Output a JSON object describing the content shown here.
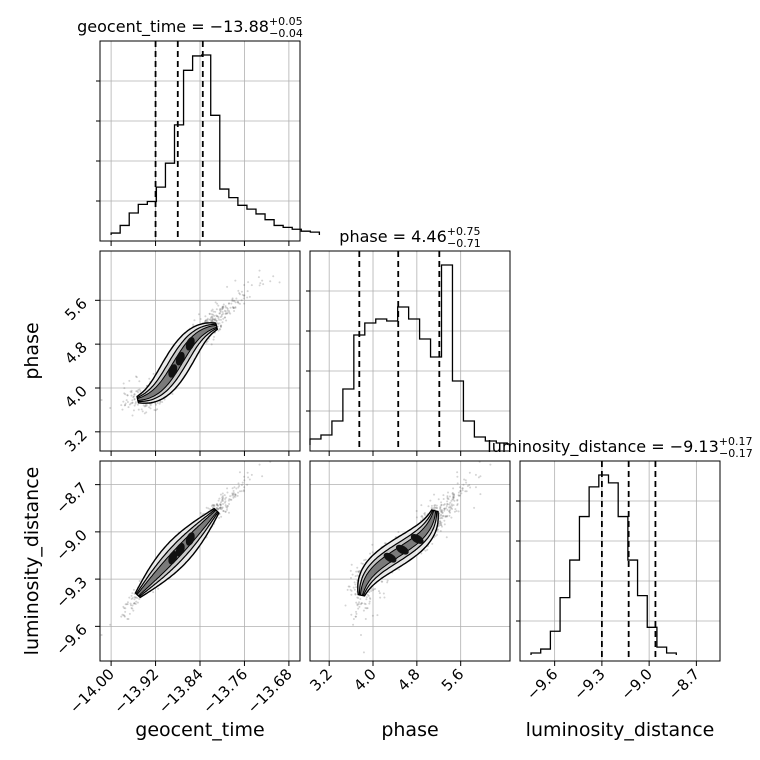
{
  "chart_data": {
    "type": "corner",
    "parameters": [
      "geocent_time",
      "phase",
      "luminosity_distance"
    ],
    "titles": [
      {
        "name": "geocent_time",
        "median": "−13.88",
        "plus": "+0.05",
        "minus": "−0.04"
      },
      {
        "name": "phase",
        "median": "4.46",
        "plus": "+0.75",
        "minus": "−0.71"
      },
      {
        "name": "luminosity_distance",
        "median": "−9.13",
        "plus": "+0.17",
        "minus": "−0.17"
      }
    ],
    "axis_labels": [
      "geocent_time",
      "phase",
      "luminosity_distance"
    ],
    "ranges": [
      [
        -14.02,
        -13.66
      ],
      [
        2.85,
        6.5
      ],
      [
        -9.82,
        -8.55
      ]
    ],
    "ticks": {
      "geocent_time": [
        -14.0,
        -13.92,
        -13.84,
        -13.76,
        -13.68
      ],
      "phase": [
        3.2,
        4.0,
        4.8,
        5.6
      ],
      "luminosity_distance": [
        -9.6,
        -9.3,
        -9.0,
        -8.7
      ]
    },
    "tick_labels": {
      "geocent_time": [
        "−14.00",
        "−13.92",
        "−13.84",
        "−13.76",
        "−13.68"
      ],
      "phase": [
        "3.2",
        "4.0",
        "4.8",
        "5.6"
      ],
      "luminosity_distance": [
        "−9.6",
        "−9.3",
        "−9.0",
        "−8.7"
      ]
    },
    "quantiles": {
      "geocent_time": [
        -13.92,
        -13.88,
        -13.835
      ],
      "phase": [
        3.75,
        4.46,
        5.21
      ],
      "luminosity_distance": [
        -9.3,
        -9.13,
        -8.96
      ]
    },
    "histograms": {
      "geocent_time": {
        "start": -14.0,
        "step": 0.0163,
        "counts": [
          2,
          10,
          23,
          32,
          35,
          50,
          75,
          115,
          172,
          187,
          188,
          125,
          48,
          39,
          31,
          27,
          22,
          16,
          10,
          8,
          6,
          4,
          3
        ]
      },
      "phase": {
        "start": 2.85,
        "step": 0.2,
        "counts": [
          3,
          5,
          12,
          28,
          55,
          61,
          63,
          62,
          69,
          63,
          53,
          44,
          90,
          32,
          12,
          4,
          2,
          1
        ]
      },
      "luminosity_distance": {
        "start": -9.75,
        "step": 0.0615,
        "counts": [
          1,
          3,
          12,
          29,
          48,
          70,
          85,
          91,
          87,
          70,
          48,
          30,
          14,
          4,
          1
        ]
      }
    },
    "scatter_2d": [
      {
        "x": "geocent_time",
        "y": "phase",
        "relation": "increasing, curved"
      },
      {
        "x": "geocent_time",
        "y": "luminosity_distance",
        "relation": "increasing"
      },
      {
        "x": "phase",
        "y": "luminosity_distance",
        "relation": "increasing"
      }
    ],
    "grid": true
  }
}
